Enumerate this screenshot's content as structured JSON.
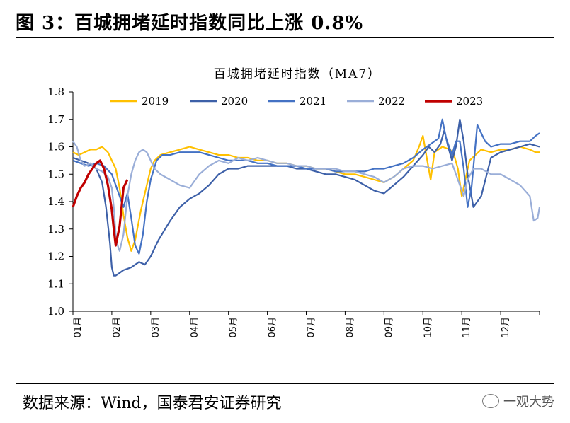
{
  "figure": {
    "title": "图 3：百城拥堵延时指数同比上涨 0.8%",
    "source": "数据来源：Wind，国泰君安证券研究",
    "watermark": "一观大势"
  },
  "colors": {
    "2019": "#FFC000",
    "2020": "#3D60A8",
    "2021": "#4472C4",
    "2022": "#9AAED8",
    "2023": "#C00000"
  },
  "chart_data": {
    "type": "line",
    "title": "百城拥堵延时指数（MA7）",
    "xlabel": "",
    "ylabel": "",
    "ylim": [
      1.0,
      1.8
    ],
    "yticks": [
      "1.0",
      "1.1",
      "1.2",
      "1.3",
      "1.4",
      "1.5",
      "1.6",
      "1.7",
      "1.8"
    ],
    "xlim": [
      0,
      12
    ],
    "xticks": [
      "01月",
      "02月",
      "03月",
      "04月",
      "05月",
      "06月",
      "07月",
      "08月",
      "09月",
      "10月",
      "11月",
      "12月"
    ],
    "legend_position": "top",
    "series": [
      {
        "name": "2019",
        "x": [
          0,
          0.15,
          0.3,
          0.45,
          0.6,
          0.75,
          0.9,
          1.0,
          1.1,
          1.2,
          1.3,
          1.4,
          1.5,
          1.6,
          1.75,
          1.9,
          2.0,
          2.1,
          2.25,
          2.5,
          2.75,
          3.0,
          3.25,
          3.5,
          3.75,
          4.0,
          4.25,
          4.5,
          4.75,
          5.0,
          5.25,
          5.5,
          5.75,
          6.0,
          6.25,
          6.5,
          6.75,
          7.0,
          7.25,
          7.5,
          7.75,
          8.0,
          8.25,
          8.5,
          8.75,
          8.9,
          9.0,
          9.1,
          9.2,
          9.3,
          9.5,
          9.7,
          9.8,
          9.9,
          10.0,
          10.2,
          10.5,
          10.75,
          11.0,
          11.25,
          11.5,
          11.75,
          11.9,
          12.0
        ],
        "y": [
          1.58,
          1.57,
          1.58,
          1.59,
          1.59,
          1.6,
          1.58,
          1.55,
          1.52,
          1.45,
          1.35,
          1.27,
          1.22,
          1.26,
          1.37,
          1.46,
          1.52,
          1.55,
          1.57,
          1.58,
          1.59,
          1.6,
          1.59,
          1.58,
          1.57,
          1.57,
          1.56,
          1.56,
          1.55,
          1.55,
          1.54,
          1.54,
          1.53,
          1.53,
          1.52,
          1.52,
          1.51,
          1.5,
          1.5,
          1.49,
          1.48,
          1.47,
          1.49,
          1.52,
          1.55,
          1.6,
          1.64,
          1.56,
          1.48,
          1.58,
          1.6,
          1.59,
          1.57,
          1.52,
          1.42,
          1.55,
          1.59,
          1.58,
          1.59,
          1.59,
          1.6,
          1.59,
          1.58,
          1.58
        ]
      },
      {
        "name": "2020",
        "x": [
          0,
          0.2,
          0.4,
          0.6,
          0.75,
          0.85,
          0.95,
          1.0,
          1.05,
          1.1,
          1.2,
          1.3,
          1.5,
          1.7,
          1.85,
          2.0,
          2.2,
          2.5,
          2.75,
          3.0,
          3.25,
          3.5,
          3.75,
          4.0,
          4.25,
          4.5,
          4.75,
          5.0,
          5.25,
          5.5,
          5.75,
          6.0,
          6.25,
          6.5,
          6.75,
          7.0,
          7.25,
          7.5,
          7.75,
          8.0,
          8.25,
          8.5,
          8.75,
          9.0,
          9.15,
          9.3,
          9.45,
          9.55,
          9.65,
          9.75,
          9.85,
          9.95,
          10.05,
          10.15,
          10.3,
          10.5,
          10.75,
          11.0,
          11.25,
          11.5,
          11.75,
          12.0
        ],
        "y": [
          1.56,
          1.55,
          1.54,
          1.52,
          1.47,
          1.38,
          1.25,
          1.16,
          1.13,
          1.13,
          1.14,
          1.15,
          1.16,
          1.18,
          1.17,
          1.2,
          1.26,
          1.33,
          1.38,
          1.41,
          1.43,
          1.46,
          1.5,
          1.52,
          1.52,
          1.53,
          1.53,
          1.53,
          1.53,
          1.53,
          1.52,
          1.52,
          1.51,
          1.5,
          1.5,
          1.49,
          1.48,
          1.46,
          1.44,
          1.43,
          1.46,
          1.49,
          1.53,
          1.57,
          1.6,
          1.58,
          1.61,
          1.66,
          1.6,
          1.55,
          1.6,
          1.7,
          1.62,
          1.5,
          1.38,
          1.42,
          1.56,
          1.58,
          1.59,
          1.6,
          1.61,
          1.6
        ]
      },
      {
        "name": "2021",
        "x": [
          0,
          0.2,
          0.4,
          0.6,
          0.8,
          1.0,
          1.1,
          1.2,
          1.3,
          1.4,
          1.5,
          1.6,
          1.7,
          1.8,
          1.9,
          2.0,
          2.15,
          2.3,
          2.5,
          2.75,
          3.0,
          3.25,
          3.5,
          3.75,
          4.0,
          4.25,
          4.5,
          4.75,
          5.0,
          5.25,
          5.5,
          5.75,
          6.0,
          6.25,
          6.5,
          6.75,
          7.0,
          7.25,
          7.5,
          7.75,
          8.0,
          8.25,
          8.5,
          8.75,
          9.0,
          9.2,
          9.4,
          9.5,
          9.6,
          9.75,
          9.85,
          9.95,
          10.05,
          10.15,
          10.25,
          10.4,
          10.6,
          10.75,
          11.0,
          11.25,
          11.5,
          11.75,
          11.9,
          12.0
        ],
        "y": [
          1.55,
          1.54,
          1.53,
          1.54,
          1.53,
          1.5,
          1.46,
          1.42,
          1.38,
          1.43,
          1.34,
          1.24,
          1.21,
          1.28,
          1.4,
          1.48,
          1.55,
          1.57,
          1.57,
          1.58,
          1.58,
          1.58,
          1.57,
          1.56,
          1.55,
          1.55,
          1.55,
          1.54,
          1.54,
          1.53,
          1.53,
          1.53,
          1.52,
          1.52,
          1.52,
          1.51,
          1.51,
          1.51,
          1.51,
          1.52,
          1.52,
          1.53,
          1.54,
          1.56,
          1.59,
          1.61,
          1.63,
          1.7,
          1.63,
          1.57,
          1.62,
          1.62,
          1.52,
          1.38,
          1.45,
          1.68,
          1.62,
          1.6,
          1.61,
          1.61,
          1.62,
          1.62,
          1.64,
          1.65
        ]
      },
      {
        "name": "2022",
        "x": [
          0,
          0.1,
          0.2,
          0.3,
          0.45,
          0.6,
          0.75,
          0.9,
          1.0,
          1.05,
          1.1,
          1.15,
          1.2,
          1.3,
          1.4,
          1.5,
          1.6,
          1.7,
          1.8,
          1.9,
          2.0,
          2.1,
          2.25,
          2.5,
          2.75,
          3.0,
          3.25,
          3.5,
          3.75,
          4.0,
          4.25,
          4.5,
          4.75,
          5.0,
          5.25,
          5.5,
          5.75,
          6.0,
          6.25,
          6.5,
          6.75,
          7.0,
          7.25,
          7.5,
          7.75,
          8.0,
          8.25,
          8.5,
          8.75,
          9.0,
          9.25,
          9.5,
          9.75,
          9.85,
          9.95,
          10.05,
          10.15,
          10.3,
          10.5,
          10.75,
          11.0,
          11.25,
          11.5,
          11.75,
          11.85,
          11.95,
          12.0
        ],
        "y": [
          1.62,
          1.6,
          1.55,
          1.53,
          1.54,
          1.52,
          1.51,
          1.49,
          1.45,
          1.38,
          1.28,
          1.24,
          1.22,
          1.28,
          1.42,
          1.5,
          1.55,
          1.58,
          1.59,
          1.58,
          1.55,
          1.52,
          1.5,
          1.48,
          1.46,
          1.45,
          1.5,
          1.53,
          1.55,
          1.54,
          1.56,
          1.55,
          1.56,
          1.55,
          1.54,
          1.54,
          1.53,
          1.53,
          1.52,
          1.52,
          1.52,
          1.51,
          1.51,
          1.5,
          1.49,
          1.47,
          1.49,
          1.52,
          1.53,
          1.53,
          1.52,
          1.53,
          1.54,
          1.5,
          1.46,
          1.42,
          1.48,
          1.52,
          1.52,
          1.5,
          1.5,
          1.48,
          1.46,
          1.42,
          1.33,
          1.34,
          1.38
        ]
      },
      {
        "name": "2023",
        "x": [
          0,
          0.1,
          0.2,
          0.3,
          0.4,
          0.5,
          0.6,
          0.7,
          0.8,
          0.9,
          1.0,
          1.05,
          1.1,
          1.2,
          1.3,
          1.4
        ],
        "y": [
          1.38,
          1.42,
          1.45,
          1.47,
          1.5,
          1.52,
          1.54,
          1.55,
          1.52,
          1.46,
          1.37,
          1.3,
          1.24,
          1.31,
          1.45,
          1.48
        ]
      }
    ]
  }
}
